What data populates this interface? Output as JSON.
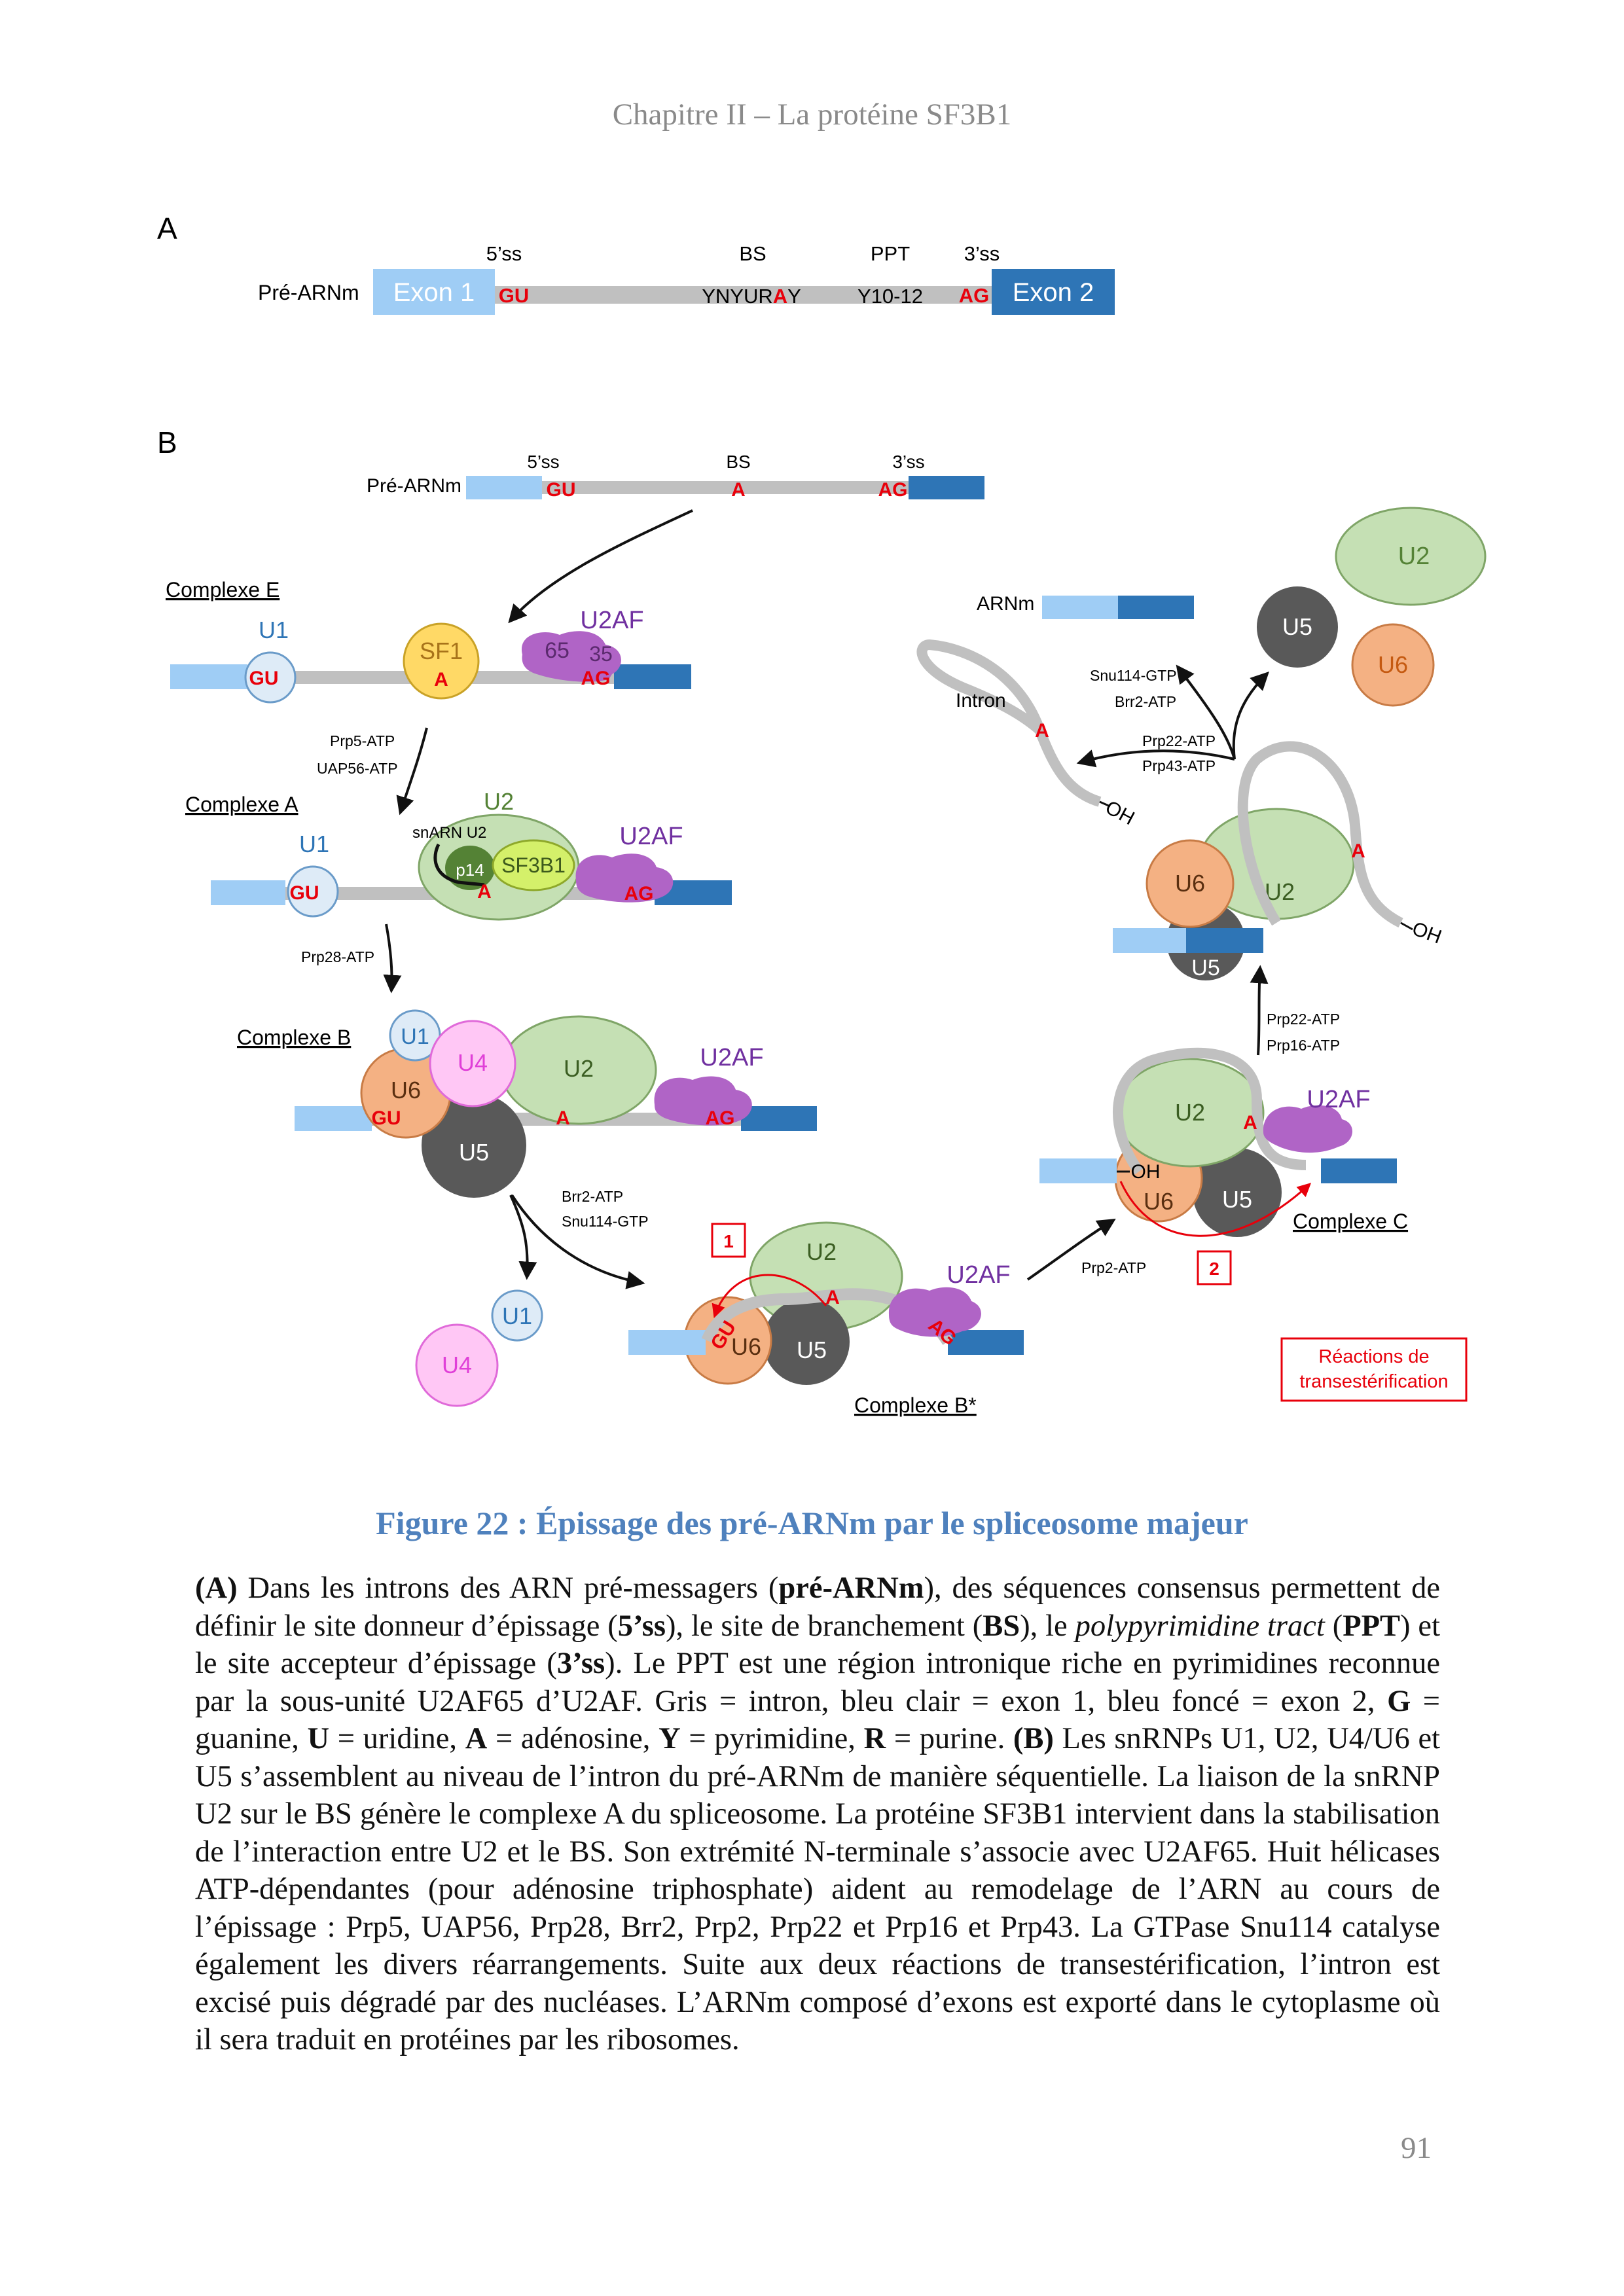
{
  "header": "Chapitre II – La protéine SF3B1",
  "panel_a": {
    "letter": "A",
    "pre_label": "Pré-ARNm",
    "exon1": "Exon 1",
    "exon2": "Exon 2",
    "ss5": "5’ss",
    "bs": "BS",
    "ppt": "PPT",
    "ss3": "3’ss",
    "gu": "GU",
    "seq_a": "YNYUR",
    "seq_b": "A",
    "seq_c": "Y",
    "y1012": "Y10-12",
    "ag": "AG"
  },
  "panel_b": {
    "letter": "B",
    "pre_label": "Pré-ARNm",
    "ss5": "5’ss",
    "bs": "BS",
    "ss3": "3’ss",
    "gu": "GU",
    "a": "A",
    "ag": "AG",
    "complexe_e": "Complexe E",
    "complexe_a": "Complexe A",
    "complexe_b": "Complexe B",
    "complexe_bstar": "Complexe B*",
    "complexe_c": "Complexe C",
    "u1": "U1",
    "u2": "U2",
    "u4": "U4",
    "u5": "U5",
    "u6": "U6",
    "sf1": "SF1",
    "u2af": "U2AF",
    "u2af65": "65",
    "u2af35": "35",
    "snarn_u2": "snARN U2",
    "p14": "p14",
    "sf3b1": "SF3B1",
    "oh": "OH",
    "arnm": "ARNm",
    "intron": "Intron",
    "prp5": "Prp5-ATP",
    "uap56": "UAP56-ATP",
    "prp28": "Prp28-ATP",
    "brr2": "Brr2-ATP",
    "snu114": "Snu114-GTP",
    "prp2": "Prp2-ATP",
    "prp22": "Prp22-ATP",
    "prp16": "Prp16-ATP",
    "prp43": "Prp43-ATP",
    "step1": "1",
    "step2": "2",
    "legend_1": "Réactions de",
    "legend_2": "transestérification"
  },
  "caption": {
    "title": "Figure 22 : Épissage des pré-ARNm par le spliceosome majeur",
    "p_a": "(A)",
    "t1": " Dans les introns des ARN pré-messagers (",
    "b1": "pré-ARNm",
    "t2": "), des séquences consensus permettent de définir le site donneur d’épissage (",
    "b2": "5’ss",
    "t3": "), le site de branchement (",
    "b3": "BS",
    "t4": "), le ",
    "i1": "polypyrimidine tract",
    "t5": " (",
    "b4": "PPT",
    "t6": ") et le site accepteur d’épissage (",
    "b5": "3’ss",
    "t7": "). Le PPT est une région intronique riche en pyrimidines reconnue par la sous-unité U2AF65 d’U2AF. Gris = intron, bleu clair = exon 1, bleu foncé = exon 2, ",
    "b6": "G",
    "t8": " = guanine, ",
    "b7": "U",
    "t9": " = uridine, ",
    "b8": "A",
    "t10": " = adénosine, ",
    "b9": "Y",
    "t11": " = pyrimidine, ",
    "b10": "R",
    "t12": " = purine. ",
    "p_b": "(B)",
    "t13": " Les snRNPs U1, U2, U4/U6 et U5 s’assemblent au niveau de l’intron du pré-ARNm de manière séquentielle. La liaison de la snRNP U2 sur le BS génère le complexe A du spliceosome. La protéine SF3B1 intervient dans la stabilisation de l’interaction entre U2 et le BS. Son extrémité N-terminale s’associe avec U2AF65. Huit hélicases ATP-dépendantes (pour adénosine triphosphate) aident au remodelage de l’ARN au cours de l’épissage : Prp5, UAP56, Prp28, Brr2, Prp2, Prp22 et Prp16 et Prp43. La GTPase Snu114 catalyse également les divers réarrangements. Suite aux deux réactions de transestérification, l’intron est excisé puis dégradé par des nucléases. L’ARNm composé d’exons est exporté dans le cytoplasme où il sera traduit en protéines par les ribosomes."
  },
  "page_number": "91",
  "colors": {
    "exon1": "#9fcdf5",
    "exon2": "#2e75b6",
    "intron": "#c0c0c0",
    "red": "#e8000b",
    "u2": "#c5e0b4",
    "u5": "#595959",
    "u6": "#f4b183",
    "u4": "#ffc7f5",
    "u1": "#deebf7",
    "sf1": "#ffd966",
    "u2af": "#b064c6",
    "p14": "#548235",
    "sf3b1": "#d4f06a"
  }
}
